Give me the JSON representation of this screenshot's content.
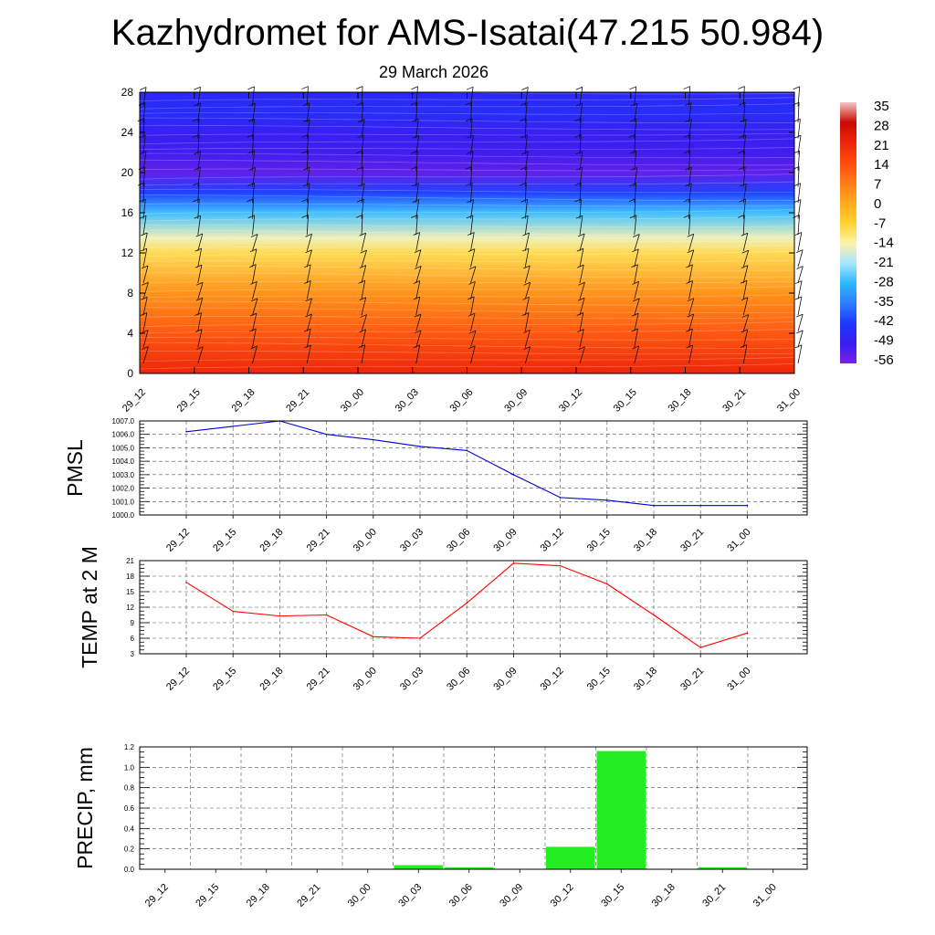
{
  "header": {
    "title": "Kazhydromet for AMS-Isatai(47.215 50.984)",
    "date": "29 March 2026"
  },
  "chart_data": [
    {
      "type": "heatmap",
      "name": "upper-air-temperature-cross-section",
      "title": "Kazhydromet for AMS-Isatai(47.215 50.984)",
      "subtitle": "29 March 2026",
      "x_tick_labels": [
        "29_12",
        "29_15",
        "29_18",
        "29_21",
        "30_00",
        "30_03",
        "30_06",
        "30_09",
        "30_12",
        "30_15",
        "30_18",
        "30_21",
        "31_00"
      ],
      "y_ticks": [
        0,
        4,
        8,
        12,
        16,
        20,
        24,
        28
      ],
      "ylim": [
        0,
        28
      ],
      "colorbar": {
        "labels": [
          "35",
          "28",
          "21",
          "14",
          "7",
          "0",
          "-7",
          "-14",
          "-21",
          "-28",
          "-35",
          "-42",
          "-49",
          "-56"
        ],
        "range": [
          -63,
          40
        ],
        "colors": [
          "#7a22e6",
          "#3a1cf0",
          "#1c38ff",
          "#2e7cff",
          "#2cb8ff",
          "#a8e8ff",
          "#fff2a8",
          "#ffd12e",
          "#ffaa1e",
          "#ff7a18",
          "#ff4a10",
          "#ee2408",
          "#c80a00",
          "#f5c8c8"
        ]
      },
      "temperature_profile": [
        {
          "level": 0,
          "value": 24
        },
        {
          "level": 4,
          "value": 14
        },
        {
          "level": 8,
          "value": 4
        },
        {
          "level": 12,
          "value": -10
        },
        {
          "level": 13.5,
          "value": -17
        },
        {
          "level": 16,
          "value": -30
        },
        {
          "level": 18,
          "value": -46
        },
        {
          "level": 20,
          "value": -60
        },
        {
          "level": 22,
          "value": -56
        },
        {
          "level": 24,
          "value": -54
        },
        {
          "level": 26,
          "value": -50
        },
        {
          "level": 28,
          "value": -52
        }
      ],
      "wind_barbs": true
    },
    {
      "type": "line",
      "name": "pmsl",
      "ylabel": "PMSL",
      "x_tick_labels": [
        "29_12",
        "29_15",
        "29_18",
        "29_21",
        "30_00",
        "30_03",
        "30_06",
        "30_09",
        "30_12",
        "30_15",
        "30_18",
        "30_21",
        "31_00"
      ],
      "y_ticks": [
        "1000.0",
        "1001.0",
        "1002.0",
        "1003.0",
        "1004.0",
        "1005.0",
        "1006.0",
        "1007.0"
      ],
      "ylim": [
        1000,
        1007
      ],
      "values": [
        1006.2,
        1006.6,
        1007.0,
        1006.0,
        1005.6,
        1005.1,
        1004.8,
        1003.0,
        1001.3,
        1001.1,
        1000.7,
        1000.7,
        1000.7
      ],
      "color": "#0000cc",
      "grid": true
    },
    {
      "type": "line",
      "name": "temp-2m",
      "ylabel": "TEMP at 2 M",
      "x_tick_labels": [
        "29_12",
        "29_15",
        "29_18",
        "29_21",
        "30_00",
        "30_03",
        "30_06",
        "30_09",
        "30_12",
        "30_15",
        "30_18",
        "30_21",
        "31_00"
      ],
      "y_ticks": [
        "3",
        "6",
        "9",
        "12",
        "15",
        "18",
        "21"
      ],
      "ylim": [
        3,
        21
      ],
      "values": [
        16.8,
        11.2,
        10.3,
        10.5,
        6.3,
        6.0,
        12.8,
        20.5,
        20.0,
        16.5,
        10.5,
        4.2,
        7.0
      ],
      "color": "#ff0000",
      "grid": true
    },
    {
      "type": "bar",
      "name": "precip",
      "ylabel": "PRECIP, mm",
      "x_tick_labels": [
        "29_12",
        "29_15",
        "29_18",
        "29_21",
        "30_00",
        "30_03",
        "30_06",
        "30_09",
        "30_12",
        "30_15",
        "30_18",
        "30_21",
        "31_00"
      ],
      "y_ticks": [
        "0.0",
        "0.2",
        "0.4",
        "0.6",
        "0.8",
        "1.0",
        "1.2"
      ],
      "ylim": [
        0,
        1.2
      ],
      "values": [
        0,
        0,
        0,
        0,
        0,
        0.04,
        0.02,
        0,
        0.22,
        1.16,
        0,
        0.02,
        0
      ],
      "color": "#22ee22",
      "grid": true
    }
  ]
}
